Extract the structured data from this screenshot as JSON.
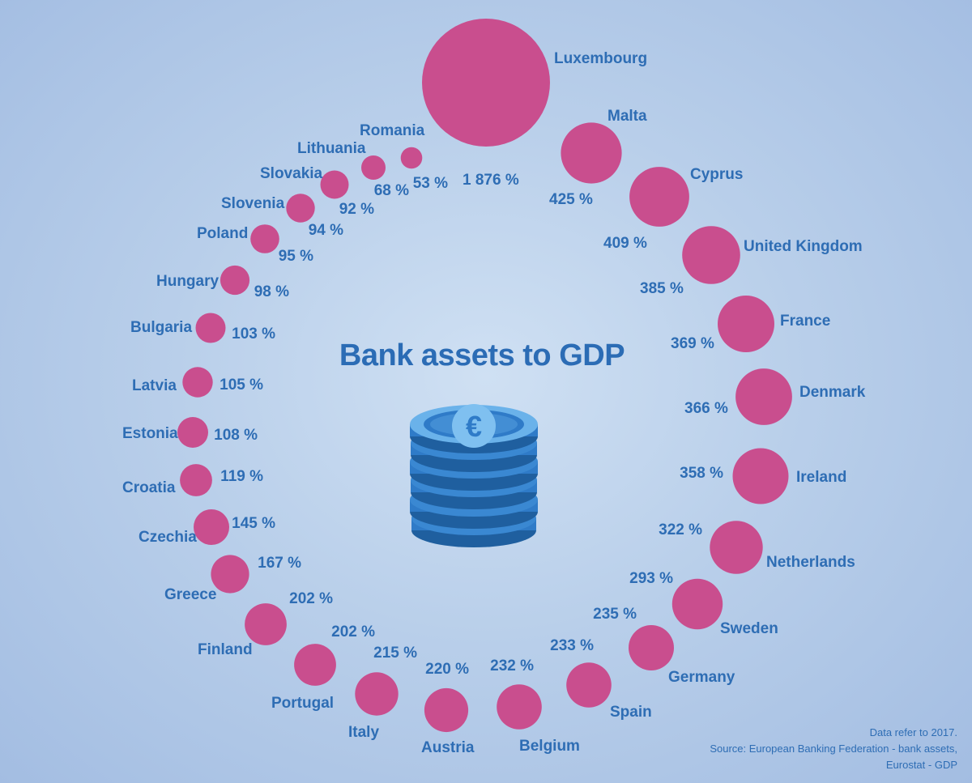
{
  "title": "Bank assets to GDP",
  "footnote": {
    "line1": "Data refer to 2017.",
    "line2": "Source: European Banking Federation - bank assets,",
    "line3": "Eurostat - GDP"
  },
  "colors": {
    "bubble": "#c94e8e",
    "text": "#2e6db4",
    "coin": "#2f7bc8"
  },
  "icon": "euro-coin-stack-icon",
  "chart_data": {
    "type": "bubble",
    "title": "Bank assets to GDP",
    "unit": "%",
    "categories": [
      "Luxembourg",
      "Malta",
      "Cyprus",
      "United Kingdom",
      "France",
      "Denmark",
      "Ireland",
      "Netherlands",
      "Sweden",
      "Germany",
      "Spain",
      "Belgium",
      "Austria",
      "Italy",
      "Portugal",
      "Finland",
      "Greece",
      "Czechia",
      "Croatia",
      "Estonia",
      "Latvia",
      "Bulgaria",
      "Hungary",
      "Poland",
      "Slovenia",
      "Slovakia",
      "Lithuania",
      "Romania"
    ],
    "values": [
      1876,
      425,
      409,
      385,
      369,
      366,
      358,
      322,
      293,
      235,
      233,
      232,
      220,
      215,
      202,
      202,
      167,
      145,
      119,
      108,
      105,
      103,
      98,
      95,
      94,
      92,
      68,
      53
    ],
    "value_labels": [
      "1 876 %",
      "425 %",
      "409 %",
      "385 %",
      "369 %",
      "366 %",
      "358 %",
      "322 %",
      "293 %",
      "235 %",
      "233 %",
      "232 %",
      "220 %",
      "215 %",
      "202 %",
      "202 %",
      "167 %",
      "145 %",
      "119 %",
      "108 %",
      "105 %",
      "103 %",
      "98 %",
      "95 %",
      "94 %",
      "92 %",
      "68 %",
      "53 %"
    ]
  }
}
